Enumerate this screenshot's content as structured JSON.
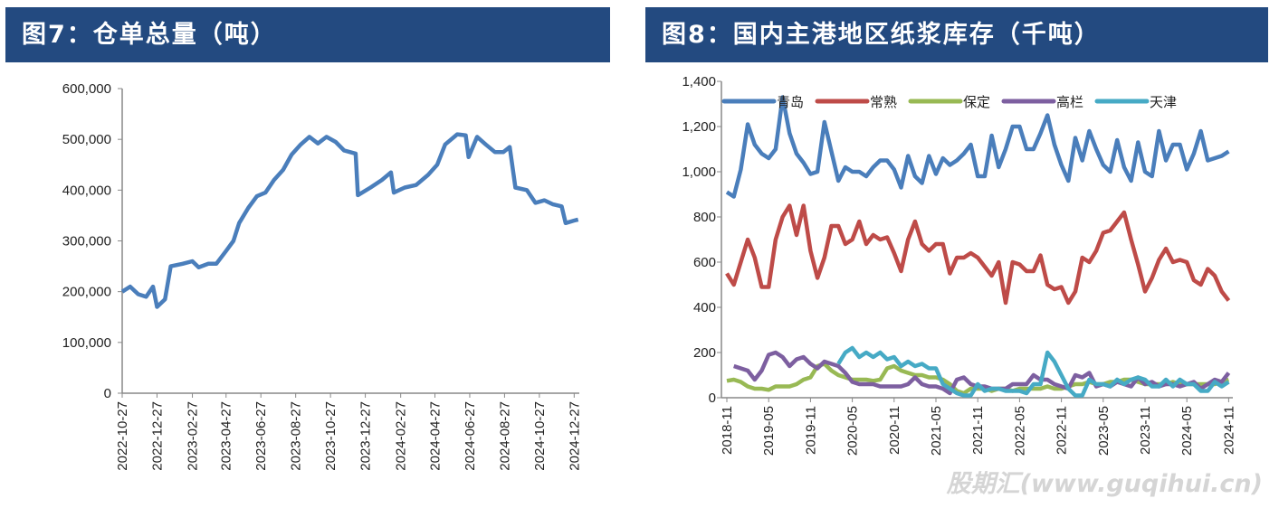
{
  "chart_data": [
    {
      "type": "line",
      "title": "图7：仓单总量（吨）",
      "ylim": [
        0,
        600000
      ],
      "yticks": [
        "0",
        "100,000",
        "200,000",
        "300,000",
        "400,000",
        "500,000",
        "600,000"
      ],
      "ytick_values": [
        0,
        100000,
        200000,
        300000,
        400000,
        500000,
        600000
      ],
      "xticks": [
        "2022-10-27",
        "2022-12-27",
        "2023-02-27",
        "2023-04-27",
        "2023-06-27",
        "2023-08-27",
        "2023-10-27",
        "2023-12-27",
        "2024-02-27",
        "2024-04-27",
        "2024-06-27",
        "2024-08-27",
        "2024-10-27",
        "2024-12-27"
      ],
      "xlim": [
        "2022-10-27",
        "2025-01-05"
      ],
      "color": "#4a7ebb",
      "series": [
        {
          "name": "仓单总量",
          "points": [
            [
              "2022-10-27",
              200000
            ],
            [
              "2022-11-10",
              210000
            ],
            [
              "2022-11-24",
              195000
            ],
            [
              "2022-12-08",
              190000
            ],
            [
              "2022-12-20",
              210000
            ],
            [
              "2022-12-27",
              170000
            ],
            [
              "2023-01-10",
              185000
            ],
            [
              "2023-01-20",
              250000
            ],
            [
              "2023-02-10",
              255000
            ],
            [
              "2023-02-27",
              260000
            ],
            [
              "2023-03-10",
              248000
            ],
            [
              "2023-03-27",
              255000
            ],
            [
              "2023-04-10",
              255000
            ],
            [
              "2023-04-27",
              280000
            ],
            [
              "2023-05-10",
              300000
            ],
            [
              "2023-05-20",
              335000
            ],
            [
              "2023-06-05",
              365000
            ],
            [
              "2023-06-20",
              388000
            ],
            [
              "2023-07-05",
              395000
            ],
            [
              "2023-07-20",
              420000
            ],
            [
              "2023-08-05",
              440000
            ],
            [
              "2023-08-20",
              470000
            ],
            [
              "2023-09-05",
              490000
            ],
            [
              "2023-09-20",
              505000
            ],
            [
              "2023-10-05",
              492000
            ],
            [
              "2023-10-20",
              505000
            ],
            [
              "2023-11-05",
              495000
            ],
            [
              "2023-11-20",
              478000
            ],
            [
              "2023-12-10",
              472000
            ],
            [
              "2023-12-14",
              390000
            ],
            [
              "2024-01-05",
              405000
            ],
            [
              "2024-01-25",
              420000
            ],
            [
              "2024-02-10",
              435000
            ],
            [
              "2024-02-15",
              395000
            ],
            [
              "2024-03-05",
              405000
            ],
            [
              "2024-03-25",
              410000
            ],
            [
              "2024-04-15",
              430000
            ],
            [
              "2024-05-01",
              450000
            ],
            [
              "2024-05-15",
              490000
            ],
            [
              "2024-06-05",
              510000
            ],
            [
              "2024-06-20",
              508000
            ],
            [
              "2024-06-25",
              465000
            ],
            [
              "2024-07-10",
              505000
            ],
            [
              "2024-07-25",
              490000
            ],
            [
              "2024-08-10",
              475000
            ],
            [
              "2024-08-25",
              475000
            ],
            [
              "2024-09-05",
              485000
            ],
            [
              "2024-09-15",
              405000
            ],
            [
              "2024-10-05",
              400000
            ],
            [
              "2024-10-20",
              375000
            ],
            [
              "2024-11-05",
              380000
            ],
            [
              "2024-11-20",
              372000
            ],
            [
              "2024-12-05",
              368000
            ],
            [
              "2024-12-12",
              335000
            ],
            [
              "2024-12-27",
              340000
            ],
            [
              "2025-01-03",
              342000
            ]
          ]
        }
      ]
    },
    {
      "type": "line",
      "title": "图8：国内主港地区纸浆库存（千吨）",
      "ylim": [
        0,
        1400
      ],
      "yticks": [
        "0",
        "200",
        "400",
        "600",
        "800",
        "1,000",
        "1,200",
        "1,400"
      ],
      "ytick_values": [
        0,
        200,
        400,
        600,
        800,
        1000,
        1200,
        1400
      ],
      "x_start": "2018-11",
      "xticks": [
        "2018-11",
        "2019-05",
        "2019-11",
        "2020-05",
        "2020-11",
        "2021-05",
        "2021-11",
        "2022-05",
        "2022-11",
        "2023-05",
        "2023-11",
        "2024-05",
        "2024-11"
      ],
      "legend_position": "top",
      "series": [
        {
          "name": "青岛",
          "color": "#4a7ebb",
          "values": [
            910,
            890,
            1010,
            1210,
            1120,
            1080,
            1060,
            1100,
            1330,
            1170,
            1080,
            1040,
            990,
            1000,
            1220,
            1090,
            960,
            1020,
            1000,
            1000,
            980,
            1020,
            1050,
            1050,
            1010,
            930,
            1070,
            980,
            950,
            1070,
            990,
            1060,
            1030,
            1050,
            1080,
            1120,
            980,
            980,
            1160,
            1020,
            1100,
            1200,
            1200,
            1100,
            1100,
            1170,
            1250,
            1120,
            1030,
            960,
            1150,
            1050,
            1180,
            1100,
            1030,
            1000,
            1140,
            1020,
            960,
            1130,
            1000,
            980,
            1180,
            1050,
            1120,
            1120,
            1010,
            1080,
            1180,
            1050,
            1060,
            1070,
            1090
          ]
        },
        {
          "name": "常熟",
          "color": "#be4b48",
          "values": [
            550,
            500,
            600,
            700,
            620,
            490,
            490,
            700,
            800,
            850,
            720,
            850,
            650,
            530,
            620,
            760,
            760,
            680,
            700,
            780,
            680,
            720,
            700,
            710,
            640,
            560,
            700,
            780,
            680,
            650,
            680,
            680,
            550,
            620,
            620,
            640,
            620,
            580,
            540,
            600,
            420,
            600,
            590,
            560,
            560,
            630,
            500,
            480,
            490,
            420,
            470,
            620,
            600,
            650,
            730,
            740,
            780,
            820,
            700,
            590,
            470,
            530,
            610,
            660,
            600,
            610,
            600,
            520,
            500,
            570,
            540,
            470,
            430
          ]
        },
        {
          "name": "保定",
          "color": "#98b954",
          "values": [
            75,
            80,
            70,
            50,
            40,
            40,
            35,
            50,
            50,
            50,
            60,
            80,
            90,
            140,
            150,
            120,
            100,
            90,
            80,
            80,
            80,
            75,
            80,
            130,
            140,
            120,
            110,
            100,
            100,
            90,
            90,
            80,
            60,
            30,
            20,
            40,
            40,
            40,
            30,
            40,
            40,
            30,
            40,
            40,
            40,
            40,
            50,
            40,
            40,
            50,
            60,
            60,
            70,
            60,
            60,
            70,
            70,
            80,
            80,
            70,
            60,
            60,
            60,
            60,
            70,
            60,
            60,
            60,
            60,
            60,
            60,
            70,
            80
          ]
        },
        {
          "name": "高栏",
          "color": "#7d5fa0",
          "values": [
            null,
            140,
            130,
            120,
            80,
            120,
            190,
            200,
            180,
            140,
            170,
            180,
            150,
            130,
            160,
            150,
            140,
            110,
            70,
            60,
            60,
            60,
            50,
            50,
            50,
            50,
            60,
            90,
            60,
            50,
            50,
            40,
            20,
            80,
            90,
            60,
            50,
            50,
            40,
            40,
            40,
            60,
            60,
            60,
            100,
            80,
            80,
            60,
            50,
            40,
            100,
            90,
            110,
            50,
            60,
            50,
            70,
            60,
            50,
            90,
            60,
            70,
            50,
            60,
            60,
            50,
            60,
            70,
            40,
            60,
            80,
            70,
            110
          ]
        },
        {
          "name": "天津",
          "color": "#46aac5",
          "values": [
            null,
            null,
            null,
            null,
            null,
            null,
            null,
            null,
            null,
            null,
            null,
            null,
            null,
            null,
            null,
            null,
            150,
            200,
            220,
            180,
            200,
            180,
            200,
            170,
            180,
            140,
            160,
            140,
            150,
            130,
            130,
            60,
            40,
            20,
            10,
            10,
            60,
            30,
            40,
            40,
            30,
            30,
            30,
            20,
            60,
            60,
            200,
            160,
            100,
            40,
            10,
            10,
            80,
            60,
            60,
            50,
            80,
            60,
            80,
            90,
            80,
            50,
            50,
            80,
            50,
            80,
            60,
            60,
            30,
            30,
            70,
            50,
            70
          ]
        }
      ]
    }
  ],
  "watermark": "股期汇(www.guqihui.cn)"
}
